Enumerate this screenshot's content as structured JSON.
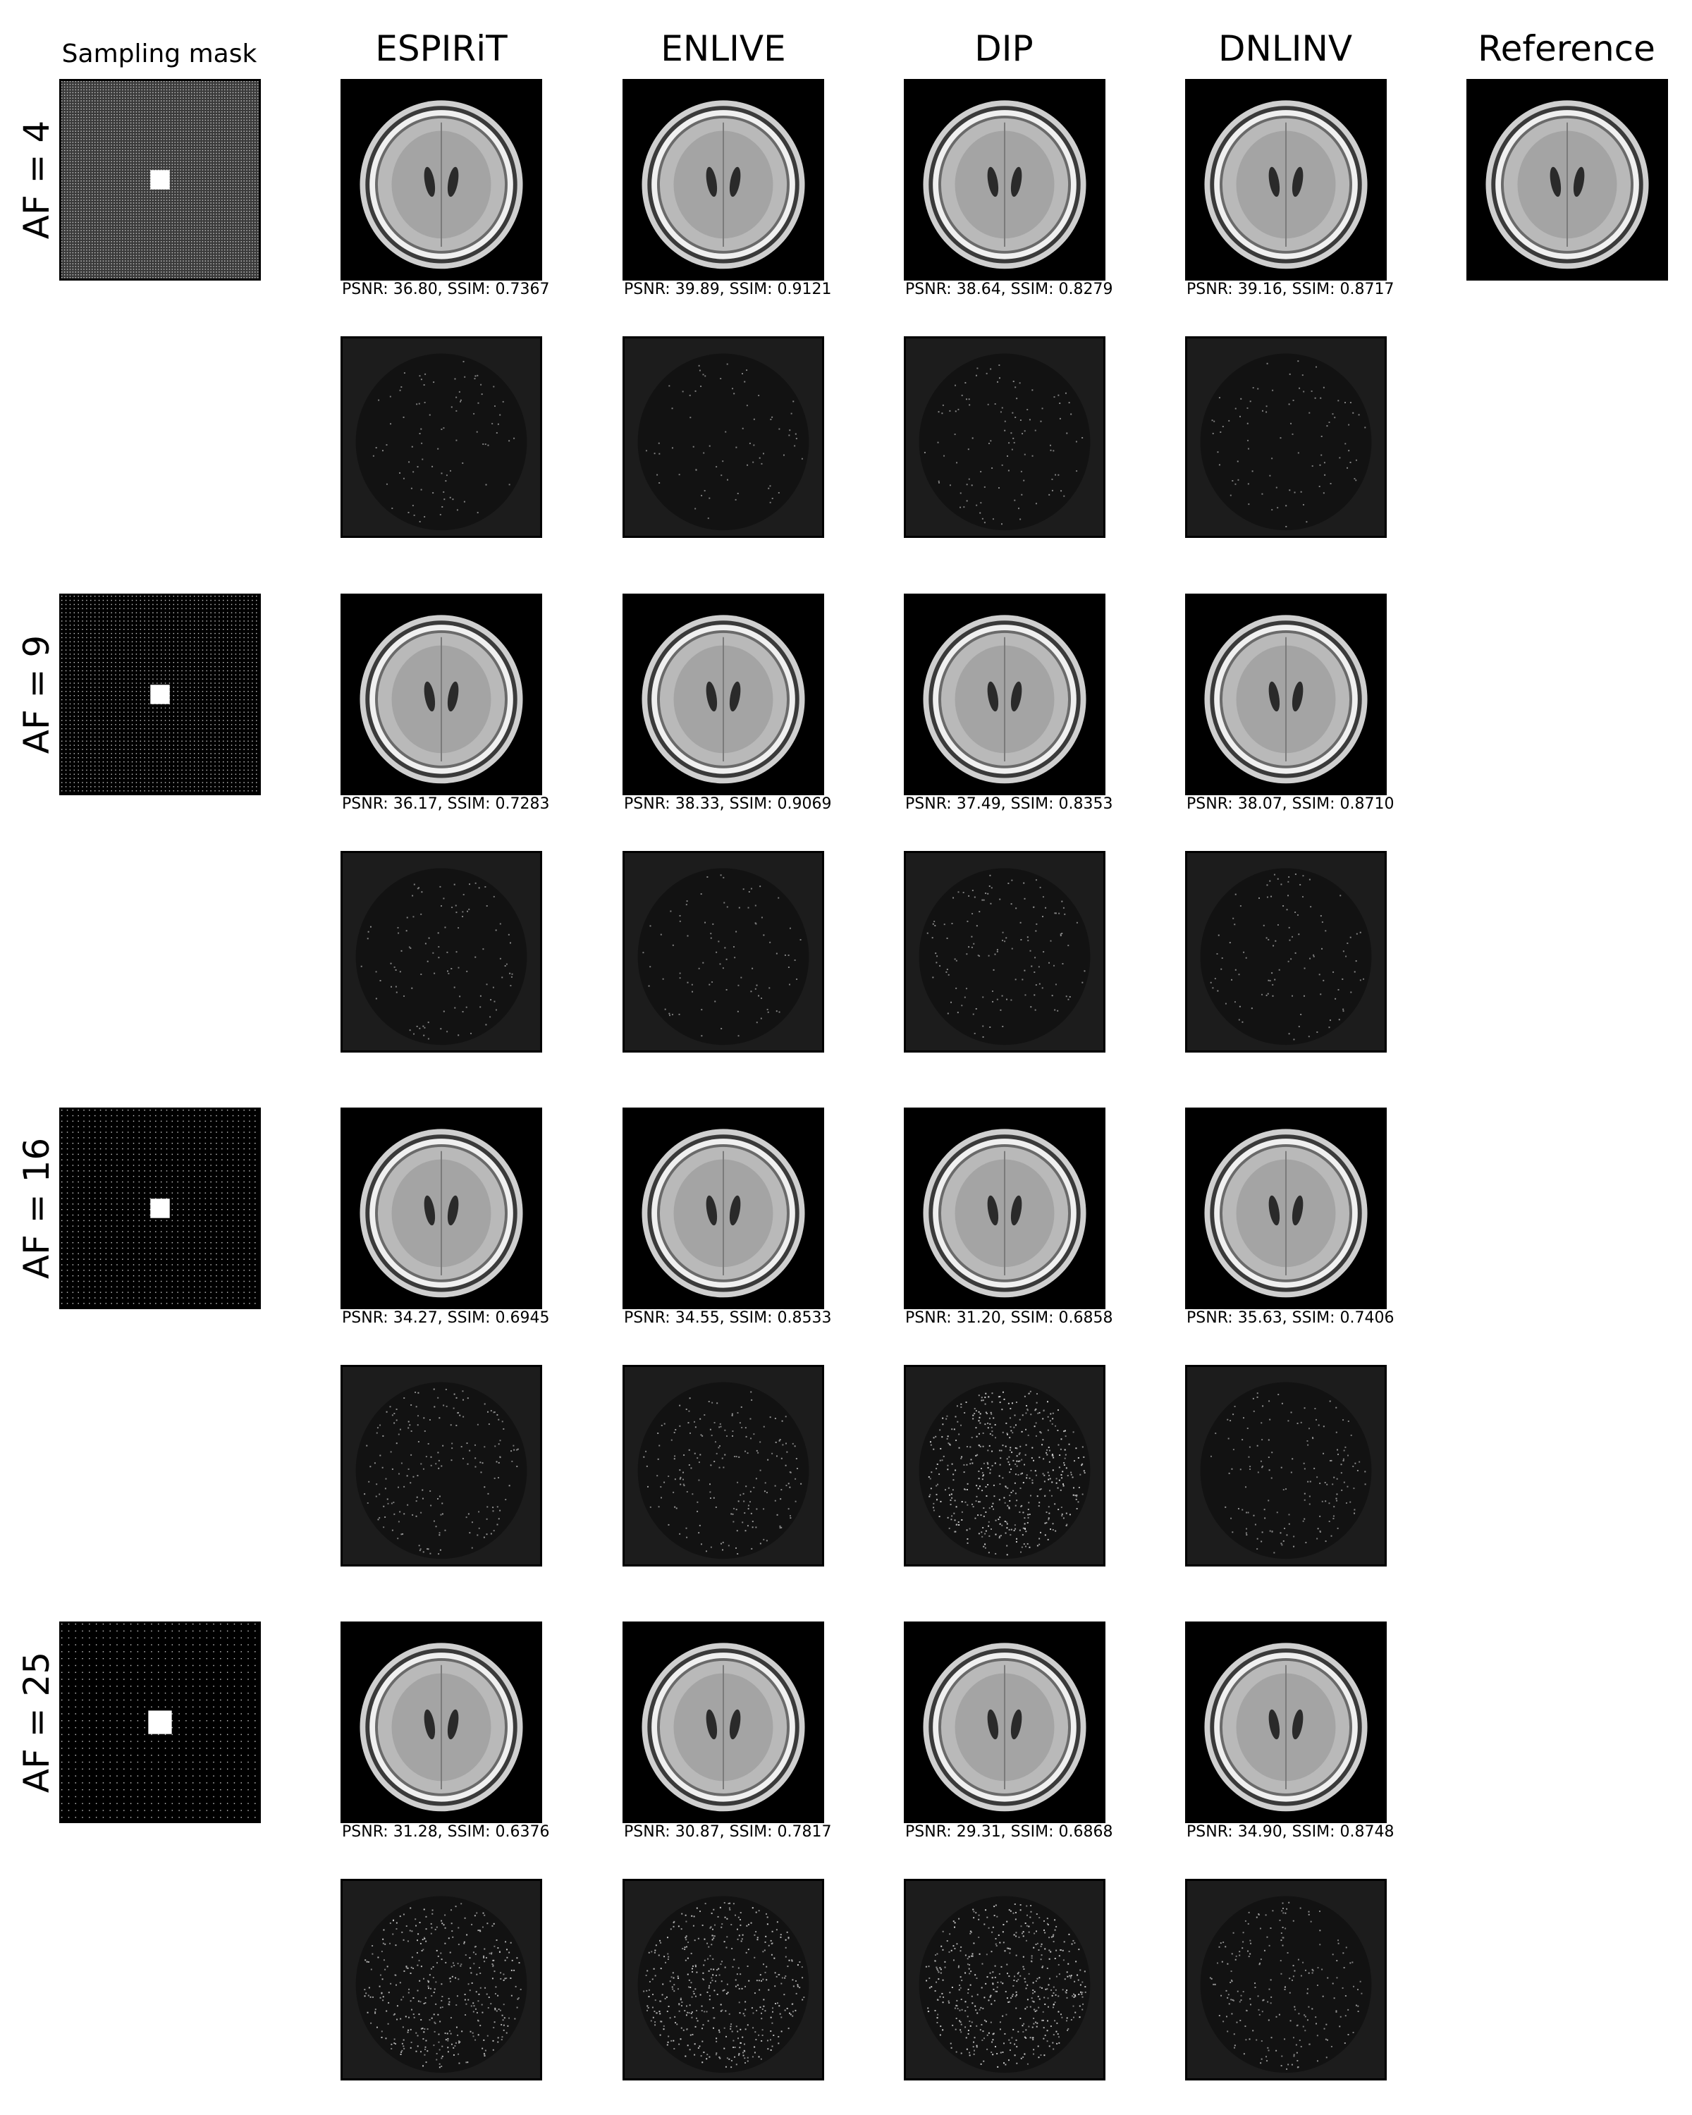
{
  "figure": {
    "sampling_mask_title": "Sampling mask",
    "methods": [
      "ESPIRiT",
      "ENLIVE",
      "DIP",
      "DNLINV"
    ],
    "reference_title": "Reference",
    "rows": [
      {
        "af_label": "AF = 4",
        "metrics": [
          "PSNR: 36.80, SSIM: 0.7367",
          "PSNR: 39.89, SSIM: 0.9121",
          "PSNR: 38.64, SSIM: 0.8279",
          "PSNR: 39.16, SSIM: 0.8717"
        ],
        "error_levels": [
          0.1,
          0.08,
          0.12,
          0.1
        ]
      },
      {
        "af_label": "AF = 9",
        "metrics": [
          "PSNR: 36.17, SSIM: 0.7283",
          "PSNR: 38.33, SSIM: 0.9069",
          "PSNR: 37.49, SSIM: 0.8353",
          "PSNR: 38.07, SSIM: 0.8710"
        ],
        "error_levels": [
          0.12,
          0.1,
          0.15,
          0.12
        ]
      },
      {
        "af_label": "AF = 16",
        "metrics": [
          "PSNR: 34.27, SSIM: 0.6945",
          "PSNR: 34.55, SSIM: 0.8533",
          "PSNR: 31.20, SSIM: 0.6858",
          "PSNR: 35.63, SSIM: 0.7406"
        ],
        "error_levels": [
          0.22,
          0.22,
          0.55,
          0.18
        ]
      },
      {
        "af_label": "AF = 25",
        "metrics": [
          "PSNR: 31.28, SSIM: 0.6376",
          "PSNR: 30.87, SSIM: 0.7817",
          "PSNR: 29.31, SSIM: 0.6868",
          "PSNR: 34.90, SSIM: 0.8748"
        ],
        "error_levels": [
          0.45,
          0.5,
          0.55,
          0.25
        ]
      }
    ],
    "mask_densities": [
      4,
      9,
      16,
      25
    ],
    "colors": {
      "background": "#ffffff",
      "tile_bg": "#000000",
      "error_bg": "#1c1c1c",
      "mask_bg": "#3a3a3a"
    }
  }
}
